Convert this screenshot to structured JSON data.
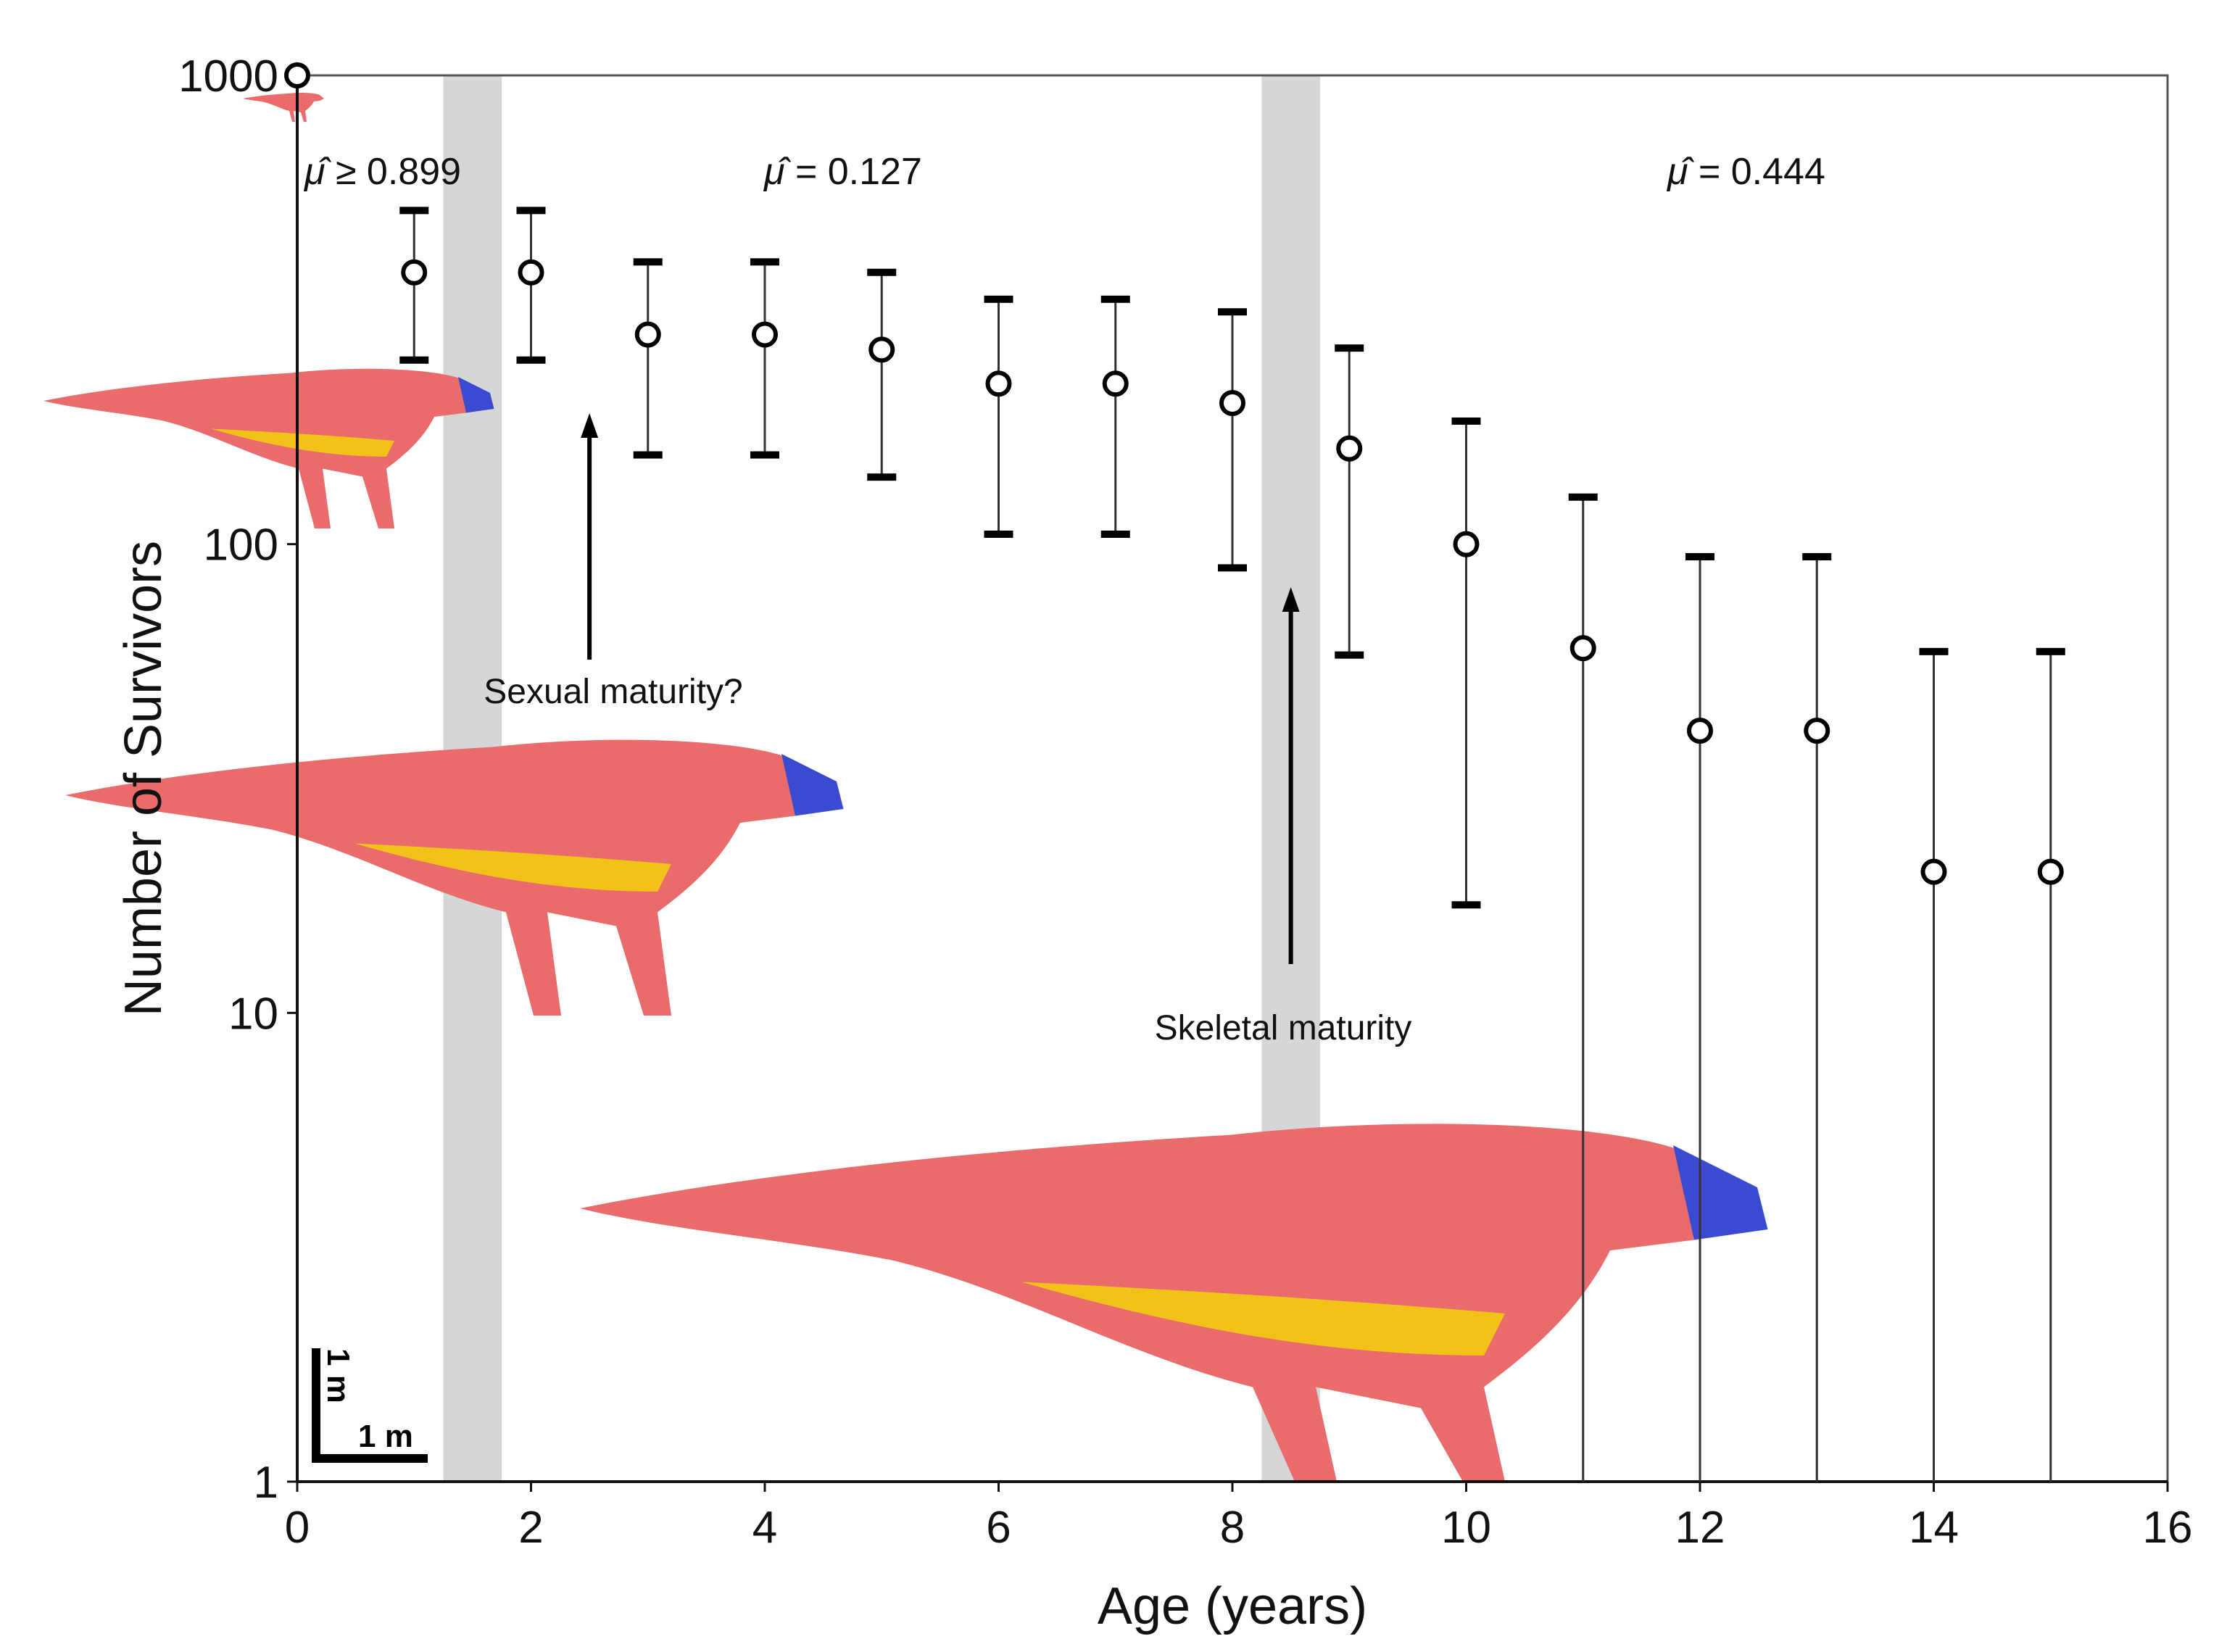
{
  "chart_data": {
    "type": "scatter",
    "xlabel": "Age (years)",
    "ylabel": "Number of Survivors",
    "xlim": [
      0,
      16
    ],
    "ylim": [
      1,
      1000
    ],
    "yscale": "log",
    "grid": false,
    "x_ticks": [
      "0",
      "2",
      "4",
      "6",
      "8",
      "10",
      "12",
      "14",
      "16"
    ],
    "y_ticks": [
      "1",
      "10",
      "100",
      "1000"
    ],
    "points": [
      {
        "age": 0,
        "survivors": 1000,
        "lower": 1000,
        "upper": 1000
      },
      {
        "age": 1,
        "survivors": 380,
        "lower": 247,
        "upper": 515
      },
      {
        "age": 2,
        "survivors": 380,
        "lower": 247,
        "upper": 515
      },
      {
        "age": 3,
        "survivors": 280,
        "lower": 155,
        "upper": 400
      },
      {
        "age": 4,
        "survivors": 280,
        "lower": 155,
        "upper": 400
      },
      {
        "age": 5,
        "survivors": 260,
        "lower": 139,
        "upper": 380
      },
      {
        "age": 6,
        "survivors": 220,
        "lower": 105,
        "upper": 333
      },
      {
        "age": 7,
        "survivors": 220,
        "lower": 105,
        "upper": 333
      },
      {
        "age": 8,
        "survivors": 200,
        "lower": 89,
        "upper": 313
      },
      {
        "age": 9,
        "survivors": 160,
        "lower": 58,
        "upper": 262
      },
      {
        "age": 10,
        "survivors": 100,
        "lower": 17,
        "upper": 183
      },
      {
        "age": 11,
        "survivors": 60,
        "lower": 1,
        "upper": 126
      },
      {
        "age": 12,
        "survivors": 40,
        "lower": 1,
        "upper": 94
      },
      {
        "age": 13,
        "survivors": 40,
        "lower": 1,
        "upper": 94
      },
      {
        "age": 14,
        "survivors": 20,
        "lower": 1,
        "upper": 59
      },
      {
        "age": 15,
        "survivors": 20,
        "lower": 1,
        "upper": 59
      }
    ],
    "shaded_bands": [
      {
        "from": 1.25,
        "to": 1.75
      },
      {
        "from": 8.25,
        "to": 8.75
      }
    ],
    "annotations": [
      {
        "text": "Sexual maturity?",
        "arrow_age": 2.5
      },
      {
        "text": "Skeletal maturity",
        "arrow_age": 8.5
      }
    ],
    "mortality_labels": [
      {
        "symbol": "μ̂",
        "text": "≥ 0.899"
      },
      {
        "symbol": "μ̂",
        "text": "= 0.127"
      },
      {
        "symbol": "μ̂",
        "text": "= 0.444"
      }
    ],
    "scale_bar": {
      "vertical": "1 m",
      "horizontal": "1 m"
    },
    "colors": {
      "body": "#e96b6b",
      "belly": "#f2c21b",
      "head": "#3b4bd1",
      "band": "#d6d6d6",
      "marker": "#000000"
    }
  }
}
